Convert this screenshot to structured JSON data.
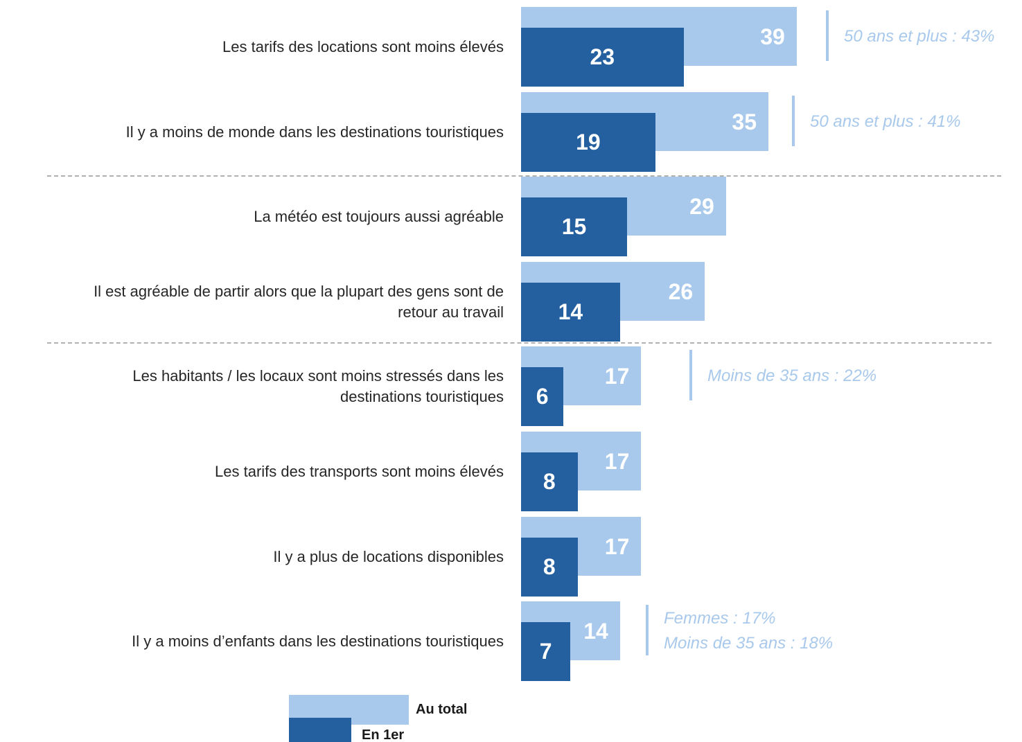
{
  "chart_data": {
    "type": "bar",
    "categories": [
      "Les tarifs des locations sont moins élevés",
      "Il y a moins de monde dans les destinations touristiques",
      "La météo est toujours aussi agréable",
      "Il est agréable de partir alors que la plupart des gens sont de\nretour au travail",
      "Les habitants / les locaux sont moins stressés dans les\ndestinations touristiques",
      "Les tarifs des transports sont moins élevés",
      "Il y a plus de locations disponibles",
      "Il y a moins d’enfants dans les destinations touristiques"
    ],
    "series": [
      {
        "name": "Au total",
        "color": "#a9c9ec",
        "values": [
          39,
          35,
          29,
          26,
          17,
          17,
          17,
          14
        ]
      },
      {
        "name": "En 1er",
        "color": "#245fa0",
        "values": [
          23,
          19,
          15,
          14,
          6,
          8,
          8,
          7
        ]
      }
    ],
    "annotations": [
      "50 ans et plus : 43%",
      "50 ans et plus : 41%",
      null,
      null,
      "Moins de 35 ans : 22%",
      null,
      null,
      "Femmes : 17%\nMoins de 35 ans : 18%"
    ]
  }
}
